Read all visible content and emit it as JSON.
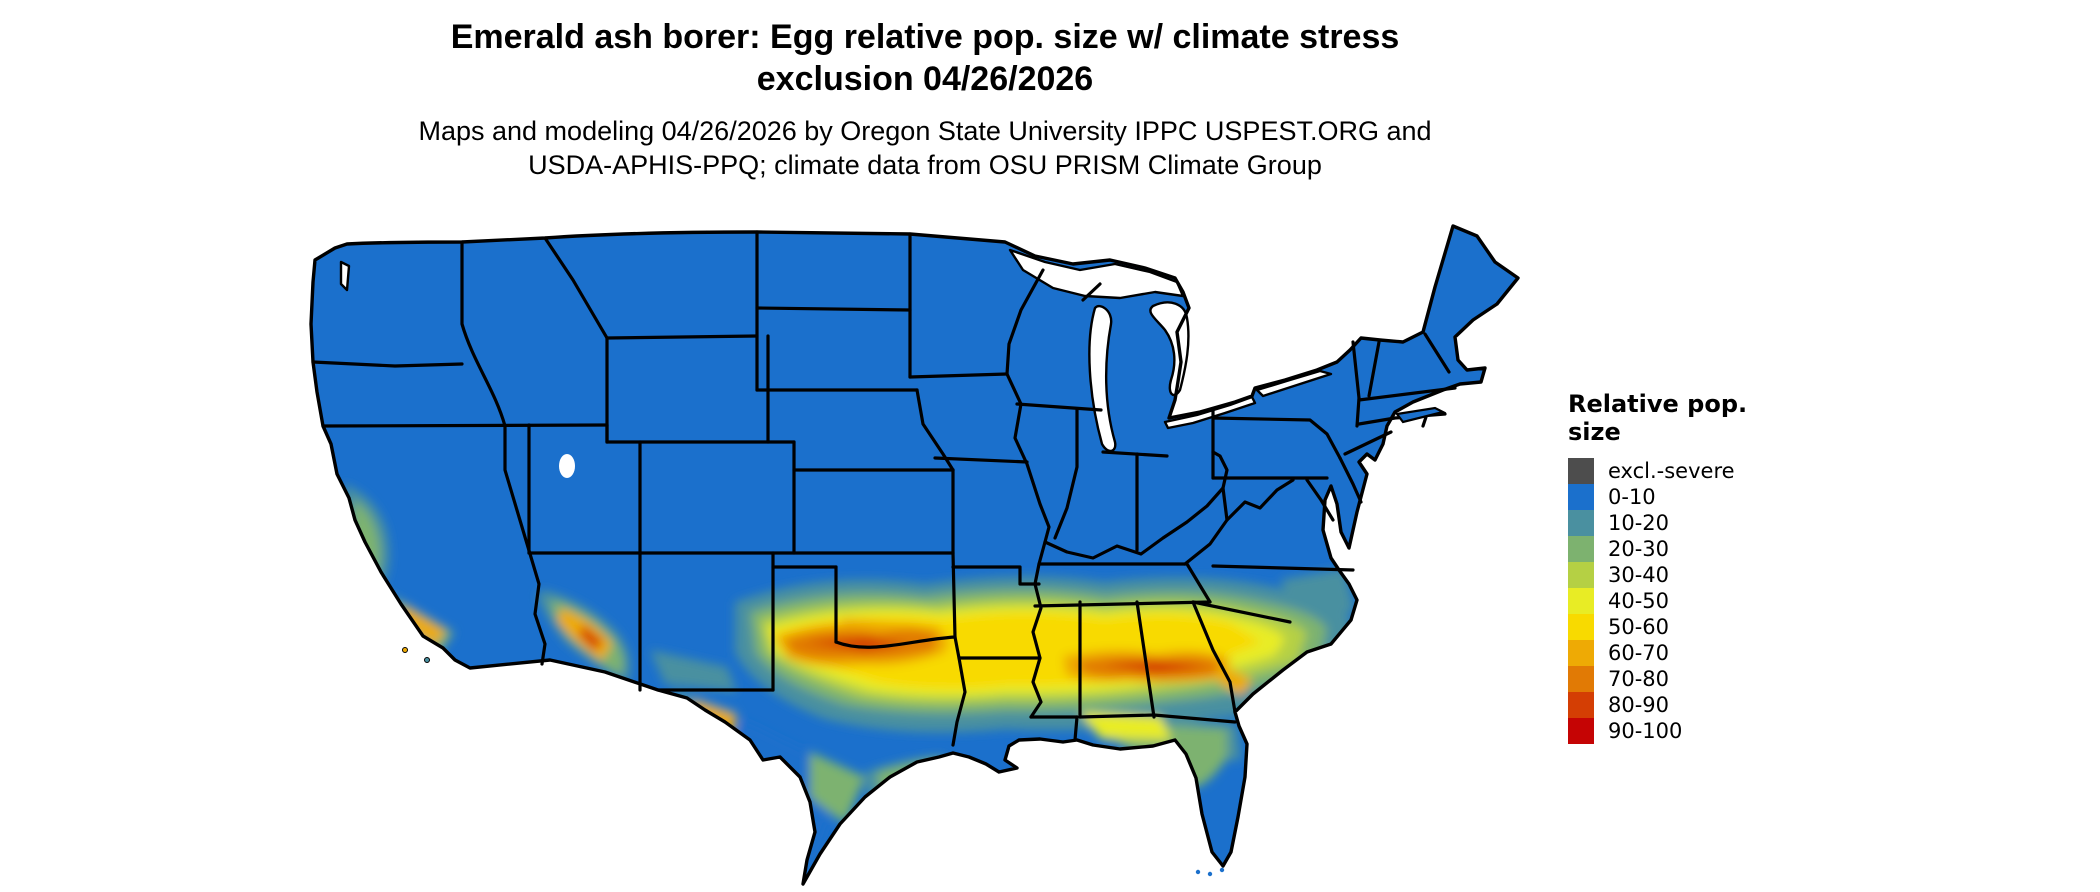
{
  "title": {
    "line1": "Emerald ash borer: Egg relative pop. size w/ climate stress",
    "line2": "exclusion 04/26/2026"
  },
  "subtitle": {
    "line1": "Maps and modeling 04/26/2026 by Oregon State University IPPC USPEST.ORG and",
    "line2": "USDA-APHIS-PPQ; climate data from OSU PRISM Climate Group"
  },
  "legend": {
    "title": "Relative pop. size",
    "items": [
      {
        "label": "excl.-severe",
        "color": "#4d4d4d"
      },
      {
        "label": "0-10",
        "color": "#1b70cc"
      },
      {
        "label": "10-20",
        "color": "#4a90a0"
      },
      {
        "label": "20-30",
        "color": "#7db26f"
      },
      {
        "label": "30-40",
        "color": "#b5d044"
      },
      {
        "label": "40-50",
        "color": "#e8ec25"
      },
      {
        "label": "50-60",
        "color": "#f8da00"
      },
      {
        "label": "60-70",
        "color": "#eeaa05"
      },
      {
        "label": "70-80",
        "color": "#e17a05"
      },
      {
        "label": "80-90",
        "color": "#d43e04"
      },
      {
        "label": "90-100",
        "color": "#c50404"
      }
    ]
  },
  "map_data": {
    "type": "choropleth-raster",
    "region": "Contiguous United States",
    "variable": "Emerald ash borer egg relative population size (%), with climate stress exclusion",
    "date_shown": "04/26/2026",
    "base_class": "0-10",
    "high_value_areas": "central Texas, Oklahoma Red River area, Louisiana-Mississippi-Alabama-Georgia band, coastal South Carolina, southern California and Arizona mountain fringes",
    "land_color": "#1b70cc",
    "border_color": "#000000",
    "background_color": "#ffffff"
  }
}
